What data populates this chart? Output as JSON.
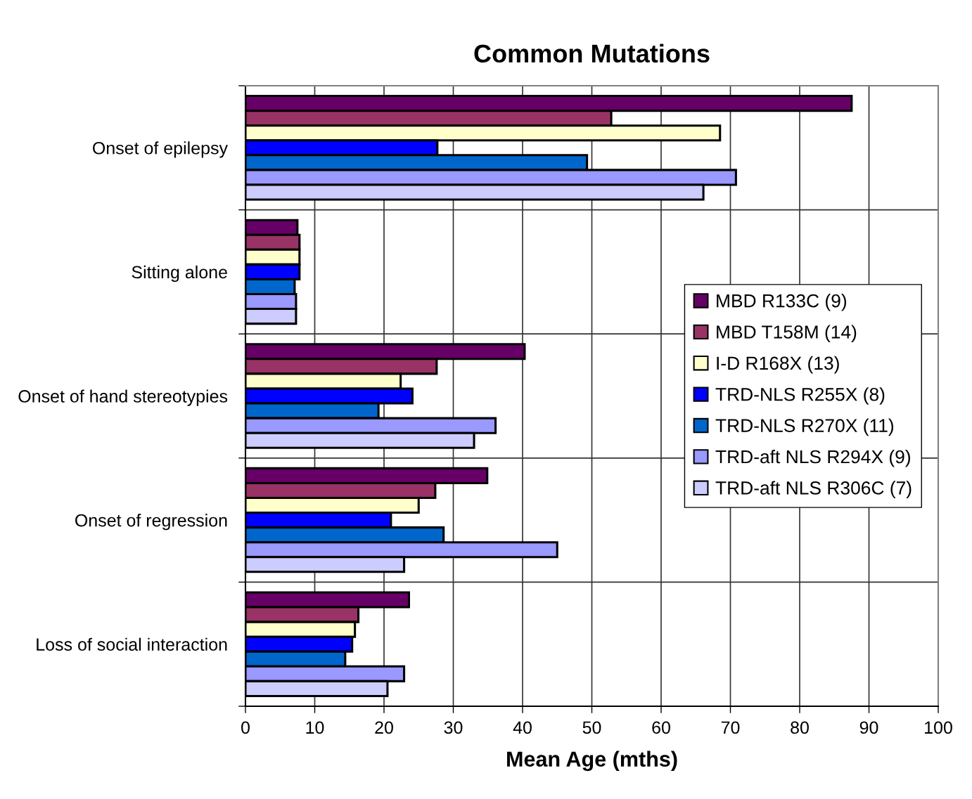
{
  "chart_data": {
    "type": "bar",
    "orientation": "horizontal",
    "title": "Common Mutations",
    "xlabel": "Mean Age (mths)",
    "categories": [
      "Onset of epilepsy",
      "Sitting alone",
      "Onset of hand stereotypies",
      "Onset of regression",
      "Loss of social interaction"
    ],
    "series": [
      {
        "name": "MBD R133C (9)",
        "color": "#660066",
        "values": [
          87.5,
          7.5,
          40.3,
          34.9,
          23.6
        ]
      },
      {
        "name": "MBD T158M (14)",
        "color": "#993366",
        "values": [
          52.8,
          7.8,
          27.6,
          27.4,
          16.3
        ]
      },
      {
        "name": "I-D R168X (13)",
        "color": "#ffffcc",
        "values": [
          68.5,
          7.8,
          22.4,
          25.0,
          15.8
        ]
      },
      {
        "name": "TRD-NLS R255X (8)",
        "color": "#0000ff",
        "values": [
          27.7,
          7.8,
          24.1,
          21.0,
          15.4
        ]
      },
      {
        "name": "TRD-NLS R270X (11)",
        "color": "#0066cc",
        "values": [
          49.3,
          7.1,
          19.2,
          28.6,
          14.4
        ]
      },
      {
        "name": "TRD-aft NLS R294X (9)",
        "color": "#9999ff",
        "values": [
          70.8,
          7.3,
          36.1,
          45.0,
          22.9
        ]
      },
      {
        "name": "TRD-aft NLS R306C (7)",
        "color": "#ccccff",
        "values": [
          66.1,
          7.3,
          33.0,
          22.9,
          20.5
        ]
      }
    ],
    "xlim": [
      0,
      100
    ],
    "xticks": [
      0,
      10,
      20,
      30,
      40,
      50,
      60,
      70,
      80,
      90,
      100
    ],
    "grid": true,
    "legend": "center right"
  }
}
